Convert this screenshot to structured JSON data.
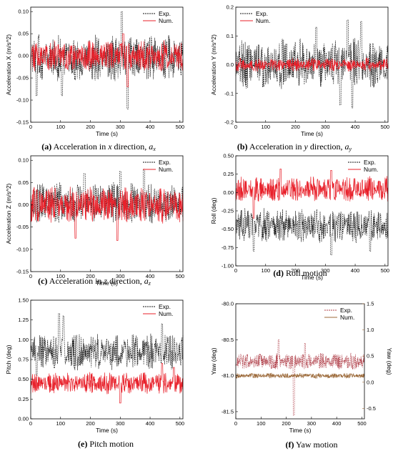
{
  "colors": {
    "exp": "#111111",
    "num": "#e8202a",
    "num_brown": "#9c6a3a",
    "panel_bg": "#ffffff"
  },
  "chart_data": [
    {
      "id": "a",
      "type": "line",
      "caption": {
        "letter": "(a)",
        "text": "Acceleration in ",
        "var": "x",
        "rest": " direction, ",
        "sym": "a",
        "sub": "x"
      },
      "xlabel": "Time (s)",
      "ylabel": "Acceleration X (m/s^2)",
      "xlim": [
        0,
        510
      ],
      "ylim": [
        -0.15,
        0.11
      ],
      "xticks": [
        0,
        100,
        200,
        300,
        400,
        500
      ],
      "yticks": [
        -0.15,
        -0.1,
        -0.05,
        0.0,
        0.05,
        0.1
      ],
      "ytick_labels": [
        "-0.15",
        "-0.10",
        "-0.05",
        "0.00",
        "0.05",
        "0.10"
      ],
      "legend": "top-right",
      "series": [
        {
          "name": "Exp.",
          "style": "dashed",
          "color": "#111111",
          "center": -0.005,
          "amp": 0.045,
          "peaks": [
            [
              305,
              0.1
            ],
            [
              325,
              -0.12
            ],
            [
              105,
              -0.09
            ],
            [
              20,
              -0.09
            ]
          ]
        },
        {
          "name": "Num.",
          "style": "solid",
          "color": "#e8202a",
          "center": 0.0,
          "amp": 0.03,
          "peaks": [
            [
              310,
              0.05
            ],
            [
              325,
              -0.07
            ]
          ]
        }
      ]
    },
    {
      "id": "b",
      "type": "line",
      "caption": {
        "letter": "(b)",
        "text": "Acceleration in ",
        "var": "y",
        "rest": " direction, ",
        "sym": "a",
        "sub": "y"
      },
      "xlabel": "Time (s)",
      "ylabel": "Acceleration Y (m/s^2)",
      "xlim": [
        0,
        510
      ],
      "ylim": [
        -0.2,
        0.2
      ],
      "xticks": [
        0,
        100,
        200,
        300,
        400,
        500
      ],
      "yticks": [
        -0.2,
        -0.1,
        0.0,
        0.1,
        0.2
      ],
      "ytick_labels": [
        "-0.2",
        "-0.1",
        "0.0",
        "0.1",
        "0.2"
      ],
      "legend": "top-left",
      "series": [
        {
          "name": "Exp.",
          "style": "dashed",
          "color": "#111111",
          "center": 0.005,
          "amp": 0.075,
          "peaks": [
            [
              375,
              0.155
            ],
            [
              420,
              0.15
            ],
            [
              270,
              0.13
            ],
            [
              390,
              -0.15
            ],
            [
              350,
              -0.14
            ]
          ]
        },
        {
          "name": "Num.",
          "style": "solid",
          "color": "#e8202a",
          "center": 0.0,
          "amp": 0.02,
          "peaks": []
        }
      ]
    },
    {
      "id": "c",
      "type": "line",
      "caption": {
        "letter": "(c)",
        "text": "Acceleration in ",
        "var": "z",
        "rest": " direction, ",
        "sym": "a",
        "sub": "z"
      },
      "xlabel": "Time (s)",
      "ylabel": "Acceleration Z (m/s^2)",
      "xlim": [
        0,
        510
      ],
      "ylim": [
        -0.15,
        0.11
      ],
      "xticks": [
        0,
        100,
        200,
        300,
        400,
        500
      ],
      "yticks": [
        -0.15,
        -0.1,
        -0.05,
        0.0,
        0.05,
        0.1
      ],
      "ytick_labels": [
        "-0.15",
        "-0.10",
        "-0.05",
        "0.00",
        "0.05",
        "0.10"
      ],
      "legend": "top-right",
      "series": [
        {
          "name": "Exp.",
          "style": "dashed",
          "color": "#111111",
          "center": 0.005,
          "amp": 0.04,
          "peaks": [
            [
              300,
              0.075
            ],
            [
              380,
              0.08
            ],
            [
              180,
              0.07
            ]
          ]
        },
        {
          "name": "Num.",
          "style": "solid",
          "color": "#e8202a",
          "center": 0.0,
          "amp": 0.035,
          "peaks": [
            [
              290,
              -0.08
            ],
            [
              150,
              -0.075
            ]
          ]
        }
      ]
    },
    {
      "id": "d",
      "type": "line",
      "caption": {
        "letter": "(d)",
        "text": "Roll motion",
        "var": "",
        "rest": "",
        "sym": "",
        "sub": ""
      },
      "xlabel": "Time (s)",
      "ylabel": "Roll (deg)",
      "xlim": [
        0,
        510
      ],
      "ylim": [
        -1.0,
        0.5
      ],
      "xticks": [
        0,
        100,
        200,
        300,
        400,
        500
      ],
      "yticks": [
        -1.0,
        -0.75,
        -0.5,
        -0.25,
        0.0,
        0.25,
        0.5
      ],
      "ytick_labels": [
        "-1.00",
        "-0.75",
        "-0.50",
        "-0.25",
        "0.00",
        "0.25",
        "0.50"
      ],
      "legend": "top-right",
      "series": [
        {
          "name": "Exp.",
          "style": "dashed",
          "color": "#111111",
          "center": -0.45,
          "amp": 0.2,
          "peaks": [
            [
              320,
              -0.85
            ],
            [
              60,
              -0.8
            ],
            [
              450,
              -0.8
            ]
          ]
        },
        {
          "name": "Num.",
          "style": "solid",
          "color": "#e8202a",
          "center": 0.05,
          "amp": 0.15,
          "peaks": [
            [
              150,
              0.32
            ],
            [
              320,
              0.3
            ],
            [
              60,
              -0.35
            ]
          ]
        }
      ]
    },
    {
      "id": "e",
      "type": "line",
      "caption": {
        "letter": "(e)",
        "text": "Pitch motion",
        "var": "",
        "rest": "",
        "sym": "",
        "sub": ""
      },
      "xlabel": "Time (s)",
      "ylabel": "Pitch (deg)",
      "xlim": [
        0,
        510
      ],
      "ylim": [
        0.0,
        1.5
      ],
      "xticks": [
        0,
        100,
        200,
        300,
        400,
        500
      ],
      "yticks": [
        0.0,
        0.25,
        0.5,
        0.75,
        1.0,
        1.25,
        1.5
      ],
      "ytick_labels": [
        "0.00",
        "0.25",
        "0.50",
        "0.75",
        "1.00",
        "1.25",
        "1.50"
      ],
      "legend": "top-right",
      "series": [
        {
          "name": "Exp.",
          "style": "dashed",
          "color": "#111111",
          "center": 0.85,
          "amp": 0.2,
          "peaks": [
            [
              95,
              1.33
            ],
            [
              110,
              1.3
            ],
            [
              440,
              1.2
            ],
            [
              20,
              0.55
            ]
          ]
        },
        {
          "name": "Num.",
          "style": "solid",
          "color": "#e8202a",
          "center": 0.45,
          "amp": 0.12,
          "peaks": [
            [
              440,
              0.7
            ],
            [
              480,
              0.65
            ],
            [
              300,
              0.2
            ]
          ]
        }
      ]
    },
    {
      "id": "f",
      "type": "line",
      "caption": {
        "letter": "(f)",
        "text": "Yaw motion",
        "var": "",
        "rest": "",
        "sym": "",
        "sub": ""
      },
      "xlabel": "Time (s)",
      "ylabel": "Yaw (deg)",
      "ylabel_right": "Yaw (deg)",
      "xlim": [
        0,
        510
      ],
      "ylim": [
        -81.6,
        -80.0
      ],
      "ylim_right": [
        -0.7,
        1.5
      ],
      "xticks": [
        0,
        100,
        200,
        300,
        400,
        500
      ],
      "yticks": [
        -81.5,
        -81.0,
        -80.5,
        -80.0
      ],
      "ytick_labels": [
        "-81.5",
        "-81.0",
        "-80.5",
        "-80.0"
      ],
      "yticks_right": [
        -0.5,
        0.0,
        0.5,
        1.0,
        1.5
      ],
      "ytick_labels_right": [
        "-0.5",
        "0.0",
        "0.5",
        "1.0",
        "1.5"
      ],
      "legend": "top-right",
      "series": [
        {
          "name": "Exp.",
          "style": "dashed",
          "color": "#b0404a",
          "center": -80.8,
          "amp": 0.1,
          "peaks": [
            [
              230,
              -81.55
            ],
            [
              170,
              -80.5
            ],
            [
              275,
              -80.55
            ]
          ]
        },
        {
          "name": "Num.",
          "style": "solid",
          "color": "#9c6a3a",
          "center": -81.0,
          "amp": 0.03,
          "peaks": []
        }
      ]
    }
  ]
}
